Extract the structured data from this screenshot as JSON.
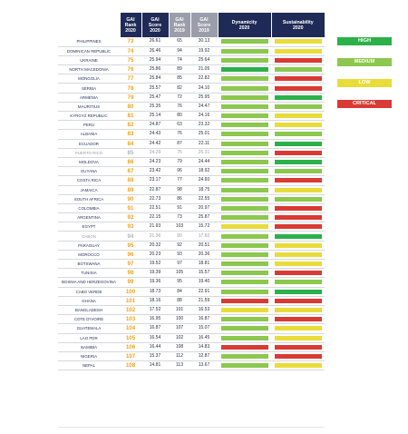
{
  "header": {
    "rank2020": [
      "GAI",
      "Rank",
      "2020"
    ],
    "score2020": [
      "GAI",
      "Score",
      "2020"
    ],
    "rank2019": [
      "GAI",
      "Rank",
      "2019"
    ],
    "score2019": [
      "GAI",
      "Score",
      "2019"
    ],
    "dynamicity": [
      "Dynamicity",
      "2020"
    ],
    "sustainability": [
      "Sustainability",
      "2020"
    ]
  },
  "colors": {
    "header_dark": "#1f2a57",
    "header_gray": "#9b9eaa",
    "rank_orange": "#f0a21c",
    "high": "#2bb04a",
    "medium": "#8cc74e",
    "low": "#e8dc3a",
    "critical": "#d93a33"
  },
  "legend": [
    {
      "label": "HIGH",
      "level": "high"
    },
    {
      "label": "MEDIUM",
      "level": "medium"
    },
    {
      "label": "LOW",
      "level": "low"
    },
    {
      "label": "CRITICAL",
      "level": "critical"
    }
  ],
  "rows": [
    {
      "country": "PHILIPPINES",
      "rank2020": "73",
      "score2020": "26.61",
      "rank2019": "65",
      "score2019": "30.13",
      "dynamicity": "medium",
      "sustainability": "low",
      "muted": false
    },
    {
      "country": "DOMINICAN REPUBLIC",
      "rank2020": "74",
      "score2020": "26.46",
      "rank2019": "94",
      "score2019": "19.92",
      "dynamicity": "medium",
      "sustainability": "low",
      "muted": false
    },
    {
      "country": "UKRAINE",
      "rank2020": "75",
      "score2020": "25.94",
      "rank2019": "74",
      "score2019": "25.64",
      "dynamicity": "medium",
      "sustainability": "critical",
      "muted": false
    },
    {
      "country": "NORTH MACEDONIA",
      "rank2020": "76",
      "score2020": "25.86",
      "rank2019": "89",
      "score2019": "21.05",
      "dynamicity": "high",
      "sustainability": "medium",
      "muted": false
    },
    {
      "country": "MONGOLIA",
      "rank2020": "77",
      "score2020": "25.84",
      "rank2019": "85",
      "score2019": "22.82",
      "dynamicity": "medium",
      "sustainability": "critical",
      "muted": false
    },
    {
      "country": "SERBIA",
      "rank2020": "78",
      "score2020": "25.57",
      "rank2019": "82",
      "score2019": "24.10",
      "dynamicity": "medium",
      "sustainability": "critical",
      "muted": false
    },
    {
      "country": "ARMENIA",
      "rank2020": "79",
      "score2020": "25.47",
      "rank2019": "72",
      "score2019": "25.95",
      "dynamicity": "medium",
      "sustainability": "high",
      "muted": false
    },
    {
      "country": "MAURITIUS",
      "rank2020": "80",
      "score2020": "25.35",
      "rank2019": "76",
      "score2019": "24.47",
      "dynamicity": "medium",
      "sustainability": "medium",
      "muted": false
    },
    {
      "country": "KYRGYZ REPUBLIC",
      "rank2020": "81",
      "score2020": "25.14",
      "rank2019": "80",
      "score2019": "24.16",
      "dynamicity": "medium",
      "sustainability": "low",
      "muted": false
    },
    {
      "country": "PERU",
      "rank2020": "82",
      "score2020": "24.87",
      "rank2019": "63",
      "score2019": "23.32",
      "dynamicity": "medium",
      "sustainability": "low",
      "muted": false
    },
    {
      "country": "ALBANIA",
      "rank2020": "83",
      "score2020": "24.43",
      "rank2019": "76",
      "score2019": "25.01",
      "dynamicity": "medium",
      "sustainability": "medium",
      "muted": false
    },
    {
      "country": "ECUADOR",
      "rank2020": "84",
      "score2020": "24.42",
      "rank2019": "87",
      "score2019": "22.11",
      "dynamicity": "medium",
      "sustainability": "high",
      "muted": false
    },
    {
      "country": "PUERTO RICO",
      "rank2020": "85",
      "score2020": "24.29",
      "rank2019": "75",
      "score2019": "25.31",
      "dynamicity": "medium",
      "sustainability": "critical",
      "muted": true
    },
    {
      "country": "MOLDOVA",
      "rank2020": "86",
      "score2020": "24.23",
      "rank2019": "79",
      "score2019": "24.44",
      "dynamicity": "medium",
      "sustainability": "high",
      "muted": false
    },
    {
      "country": "GUYANA",
      "rank2020": "87",
      "score2020": "23.42",
      "rank2019": "96",
      "score2019": "18.92",
      "dynamicity": "medium",
      "sustainability": "medium",
      "muted": false
    },
    {
      "country": "COSTA RICA",
      "rank2020": "88",
      "score2020": "23.17",
      "rank2019": "77",
      "score2019": "24.60",
      "dynamicity": "medium",
      "sustainability": "critical",
      "muted": false
    },
    {
      "country": "JAMAICA",
      "rank2020": "89",
      "score2020": "22.87",
      "rank2019": "98",
      "score2019": "18.75",
      "dynamicity": "medium",
      "sustainability": "low",
      "muted": false
    },
    {
      "country": "SOUTH AFRICA",
      "rank2020": "90",
      "score2020": "22.73",
      "rank2019": "86",
      "score2019": "22.55",
      "dynamicity": "medium",
      "sustainability": "medium",
      "muted": false
    },
    {
      "country": "COLOMBIA",
      "rank2020": "91",
      "score2020": "22.51",
      "rank2019": "91",
      "score2019": "20.97",
      "dynamicity": "medium",
      "sustainability": "critical",
      "muted": false
    },
    {
      "country": "ARGENTINA",
      "rank2020": "92",
      "score2020": "22.15",
      "rank2019": "73",
      "score2019": "25.87",
      "dynamicity": "medium",
      "sustainability": "critical",
      "muted": false
    },
    {
      "country": "EGYPT",
      "rank2020": "93",
      "score2020": "21.93",
      "rank2019": "103",
      "score2019": "15.72",
      "dynamicity": "low",
      "sustainability": "critical",
      "muted": false
    },
    {
      "country": "GABON",
      "rank2020": "94",
      "score2020": "21.36",
      "rank2019": "99",
      "score2019": "17.82",
      "dynamicity": "medium",
      "sustainability": "high",
      "muted": true
    },
    {
      "country": "PARAGUAY",
      "rank2020": "95",
      "score2020": "20.32",
      "rank2019": "92",
      "score2019": "20.51",
      "dynamicity": "medium",
      "sustainability": "low",
      "muted": false
    },
    {
      "country": "MOROCCO",
      "rank2020": "96",
      "score2020": "20.23",
      "rank2019": "93",
      "score2019": "20.36",
      "dynamicity": "medium",
      "sustainability": "low",
      "muted": false
    },
    {
      "country": "BOTSWANA",
      "rank2020": "97",
      "score2020": "19.52",
      "rank2019": "97",
      "score2019": "18.81",
      "dynamicity": "medium",
      "sustainability": "low",
      "muted": false
    },
    {
      "country": "TUNISIA",
      "rank2020": "98",
      "score2020": "19.39",
      "rank2019": "105",
      "score2019": "15.57",
      "dynamicity": "medium",
      "sustainability": "critical",
      "muted": false
    },
    {
      "country": "BOSNIA AND HERZEGOVINA",
      "rank2020": "99",
      "score2020": "19.36",
      "rank2019": "95",
      "score2019": "19.40",
      "dynamicity": "medium",
      "sustainability": "medium",
      "muted": false
    },
    {
      "country": "CABO VERDE",
      "rank2020": "100",
      "score2020": "18.73",
      "rank2019": "84",
      "score2019": "22.91",
      "dynamicity": "medium",
      "sustainability": "high",
      "muted": false
    },
    {
      "country": "GHANA",
      "rank2020": "101",
      "score2020": "18.16",
      "rank2019": "88",
      "score2019": "21.59",
      "dynamicity": "critical",
      "sustainability": "critical",
      "muted": false
    },
    {
      "country": "BANGLADESH",
      "rank2020": "102",
      "score2020": "17.52",
      "rank2019": "101",
      "score2019": "16.53",
      "dynamicity": "low",
      "sustainability": "low",
      "muted": false
    },
    {
      "country": "COTE D'IVOIRE",
      "rank2020": "103",
      "score2020": "16.95",
      "rank2019": "100",
      "score2019": "16.87",
      "dynamicity": "medium",
      "sustainability": "critical",
      "muted": false
    },
    {
      "country": "GUATEMALA",
      "rank2020": "104",
      "score2020": "16.87",
      "rank2019": "107",
      "score2019": "15.07",
      "dynamicity": "medium",
      "sustainability": "low",
      "muted": false
    },
    {
      "country": "LAO PDR",
      "rank2020": "105",
      "score2020": "16.54",
      "rank2019": "102",
      "score2019": "16.45",
      "dynamicity": "medium",
      "sustainability": "low",
      "muted": false
    },
    {
      "country": "NAMIBIA",
      "rank2020": "106",
      "score2020": "16.44",
      "rank2019": "108",
      "score2019": "14.83",
      "dynamicity": "critical",
      "sustainability": "critical",
      "muted": false
    },
    {
      "country": "NIGERIA",
      "rank2020": "107",
      "score2020": "15.37",
      "rank2019": "112",
      "score2019": "12.87",
      "dynamicity": "medium",
      "sustainability": "critical",
      "muted": false
    },
    {
      "country": "NEPAL",
      "rank2020": "108",
      "score2020": "14.81",
      "rank2019": "113",
      "score2019": "13.67",
      "dynamicity": "medium",
      "sustainability": "low",
      "muted": false
    }
  ]
}
